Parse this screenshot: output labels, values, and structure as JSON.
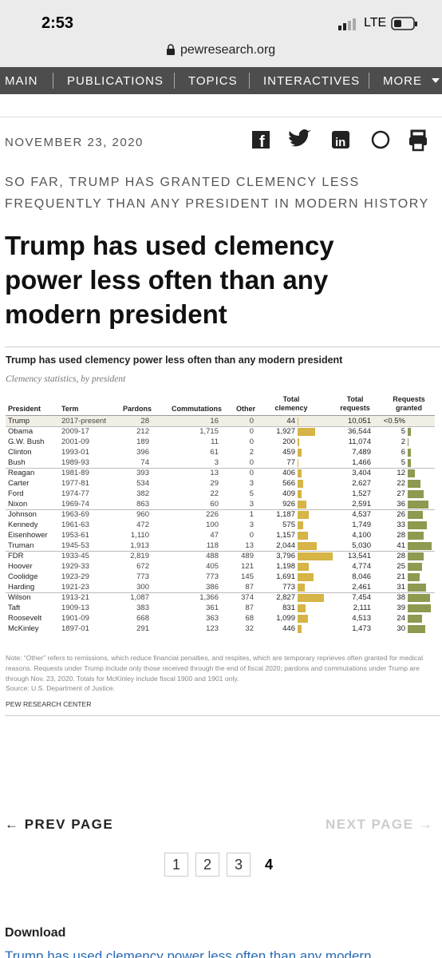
{
  "status": {
    "time": "2:53",
    "network": "LTE",
    "url": "pewresearch.org"
  },
  "nav": [
    "MAIN",
    "PUBLICATIONS",
    "TOPICS",
    "INTERACTIVES",
    "MORE"
  ],
  "article": {
    "date": "NOVEMBER 23, 2020",
    "kicker": "SO FAR, TRUMP HAS GRANTED CLEMENCY LESS FREQUENTLY THAN ANY PRESIDENT IN MODERN HISTORY",
    "headline": "Trump has used clemency power less often than any modern president"
  },
  "table": {
    "title": "Trump has used clemency power less often than any modern president",
    "subtitle": "Clemency statistics, by president",
    "header": [
      "President",
      "Term",
      "Pardons",
      "Commutations",
      "Other",
      "Total clemency",
      "Total requests",
      "Requests granted"
    ],
    "rows": [
      [
        "Trump",
        "2017-present",
        "28",
        "16",
        "0",
        "44",
        "10,051",
        "<0.5%"
      ],
      [
        "Obama",
        "2009-17",
        "212",
        "1,715",
        "0",
        "1,927",
        "36,544",
        "5"
      ],
      [
        "G.W. Bush",
        "2001-09",
        "189",
        "11",
        "0",
        "200",
        "11,074",
        "2"
      ],
      [
        "Clinton",
        "1993-01",
        "396",
        "61",
        "2",
        "459",
        "7,489",
        "6"
      ],
      [
        "Bush",
        "1989-93",
        "74",
        "3",
        "0",
        "77",
        "1,466",
        "5"
      ],
      [
        "Reagan",
        "1981-89",
        "393",
        "13",
        "0",
        "406",
        "3,404",
        "12"
      ],
      [
        "Carter",
        "1977-81",
        "534",
        "29",
        "3",
        "566",
        "2,627",
        "22"
      ],
      [
        "Ford",
        "1974-77",
        "382",
        "22",
        "5",
        "409",
        "1,527",
        "27"
      ],
      [
        "Nixon",
        "1969-74",
        "863",
        "60",
        "3",
        "926",
        "2,591",
        "36"
      ],
      [
        "Johnson",
        "1963-69",
        "960",
        "226",
        "1",
        "1,187",
        "4,537",
        "26"
      ],
      [
        "Kennedy",
        "1961-63",
        "472",
        "100",
        "3",
        "575",
        "1,749",
        "33"
      ],
      [
        "Eisenhower",
        "1953-61",
        "1,110",
        "47",
        "0",
        "1,157",
        "4,100",
        "28"
      ],
      [
        "Truman",
        "1945-53",
        "1,913",
        "118",
        "13",
        "2,044",
        "5,030",
        "41"
      ],
      [
        "FDR",
        "1933-45",
        "2,819",
        "488",
        "489",
        "3,796",
        "13,541",
        "28"
      ],
      [
        "Hoover",
        "1929-33",
        "672",
        "405",
        "121",
        "1,198",
        "4,774",
        "25"
      ],
      [
        "Coolidge",
        "1923-29",
        "773",
        "773",
        "145",
        "1,691",
        "8,046",
        "21"
      ],
      [
        "Harding",
        "1921-23",
        "300",
        "386",
        "87",
        "773",
        "2,461",
        "31"
      ],
      [
        "Wilson",
        "1913-21",
        "1,087",
        "1,366",
        "374",
        "2,827",
        "7,454",
        "38"
      ],
      [
        "Taft",
        "1909-13",
        "383",
        "361",
        "87",
        "831",
        "2,111",
        "39"
      ],
      [
        "Roosevelt",
        "1901-09",
        "668",
        "363",
        "68",
        "1,099",
        "4,513",
        "24"
      ],
      [
        "McKinley",
        "1897-01",
        "291",
        "123",
        "32",
        "446",
        "1,473",
        "30"
      ]
    ],
    "note": "Note: “Other” refers to remissions, which reduce financial penalties, and respites, which are temporary reprieves often granted for medical reasons. Requests under Trump include only those received through the end of fiscal 2020; pardons and commutations under Trump are through Nov. 23, 2020. Totals for McKinley include fiscal 1900 and 1901 only.",
    "source": "Source: U.S. Department of Justice.",
    "credit": "PEW RESEARCH CENTER"
  },
  "pagination": {
    "prev": "← PREV PAGE",
    "next": "NEXT PAGE →",
    "pages": [
      "1",
      "2",
      "3",
      "4"
    ]
  },
  "download": {
    "heading": "Download",
    "link": "Trump has used clemency power less often than any modern"
  }
}
